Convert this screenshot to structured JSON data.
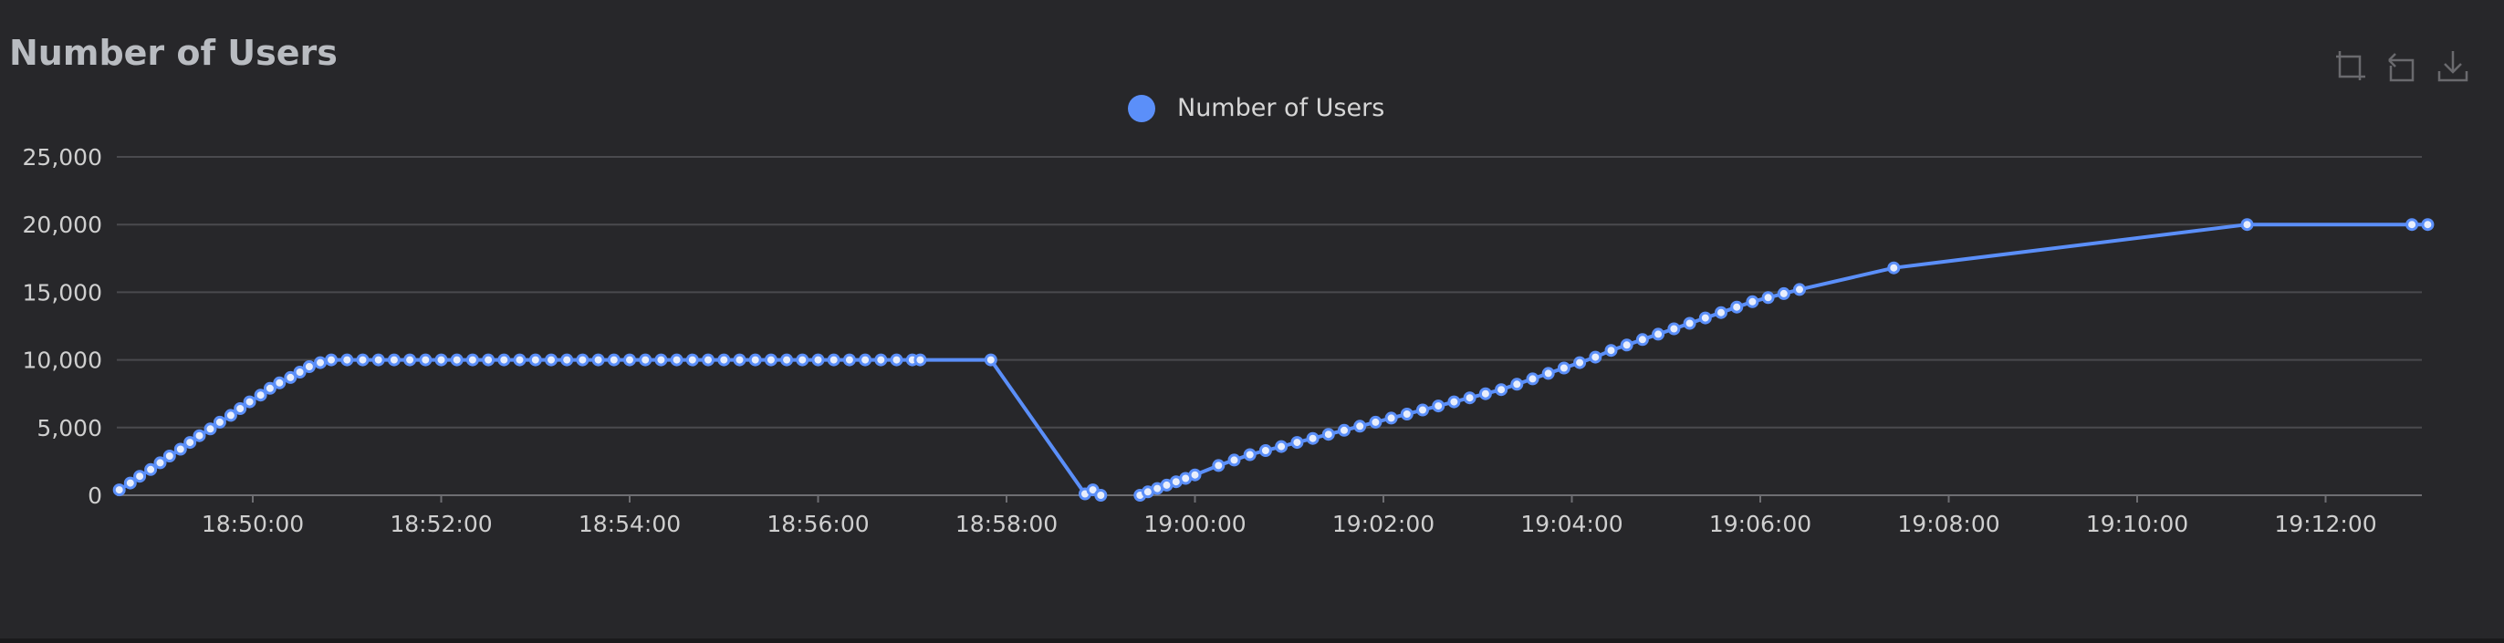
{
  "title": "Number of Users",
  "toolbox": {
    "icons": [
      "zoom-icon",
      "restore-icon",
      "download-icon"
    ]
  },
  "colors": {
    "background": "#27272a",
    "series": "#5b8ff9",
    "grid": "#4a4a4e",
    "text": "#cfcfcf"
  },
  "chart_data": {
    "type": "line",
    "title": "Number of Users",
    "xlabel": "",
    "ylabel": "",
    "legend": [
      "Number of Users"
    ],
    "legend_position": "top-center",
    "grid": true,
    "ylim": [
      0,
      25000
    ],
    "y_ticks": [
      "0",
      "5,000",
      "10,000",
      "15,000",
      "20,000",
      "25,000"
    ],
    "x_ticks": [
      "18:50:00",
      "18:52:00",
      "18:54:00",
      "18:56:00",
      "18:58:00",
      "19:00:00",
      "19:02:00",
      "19:04:00",
      "19:06:00",
      "19:08:00",
      "19:10:00",
      "19:12:00"
    ],
    "series": [
      {
        "name": "Number of Users",
        "x": [
          "18:48:35",
          "18:48:42",
          "18:48:48",
          "18:48:55",
          "18:49:01",
          "18:49:07",
          "18:49:14",
          "18:49:20",
          "18:49:26",
          "18:49:33",
          "18:49:39",
          "18:49:46",
          "18:49:52",
          "18:49:58",
          "18:50:05",
          "18:50:11",
          "18:50:17",
          "18:50:24",
          "18:50:30",
          "18:50:36",
          "18:50:43",
          "18:50:50",
          "18:51:00",
          "18:51:10",
          "18:51:20",
          "18:51:30",
          "18:51:40",
          "18:51:50",
          "18:52:00",
          "18:52:10",
          "18:52:20",
          "18:52:30",
          "18:52:40",
          "18:52:50",
          "18:53:00",
          "18:53:10",
          "18:53:20",
          "18:53:30",
          "18:53:40",
          "18:53:50",
          "18:54:00",
          "18:54:10",
          "18:54:20",
          "18:54:30",
          "18:54:40",
          "18:54:50",
          "18:55:00",
          "18:55:10",
          "18:55:20",
          "18:55:30",
          "18:55:40",
          "18:55:50",
          "18:56:00",
          "18:56:10",
          "18:56:20",
          "18:56:30",
          "18:56:40",
          "18:56:50",
          "18:57:00",
          "18:57:05",
          "18:57:50",
          "18:58:50",
          "18:58:55",
          "18:59:00",
          "18:59:25",
          "18:59:30",
          "18:59:36",
          "18:59:42",
          "18:59:48",
          "18:59:54",
          "19:00:00",
          "19:00:15",
          "19:00:25",
          "19:00:35",
          "19:00:45",
          "19:00:55",
          "19:01:05",
          "19:01:15",
          "19:01:25",
          "19:01:35",
          "19:01:45",
          "19:01:55",
          "19:02:05",
          "19:02:15",
          "19:02:25",
          "19:02:35",
          "19:02:45",
          "19:02:55",
          "19:03:05",
          "19:03:15",
          "19:03:25",
          "19:03:35",
          "19:03:45",
          "19:03:55",
          "19:04:05",
          "19:04:15",
          "19:04:25",
          "19:04:35",
          "19:04:45",
          "19:04:55",
          "19:05:05",
          "19:05:15",
          "19:05:25",
          "19:05:35",
          "19:05:45",
          "19:05:55",
          "19:06:05",
          "19:06:15",
          "19:06:25",
          "19:07:25",
          "19:11:10",
          "19:12:55",
          "19:13:05"
        ],
        "y": [
          400,
          900,
          1400,
          1900,
          2400,
          2900,
          3400,
          3900,
          4400,
          4900,
          5400,
          5900,
          6400,
          6900,
          7400,
          7900,
          8300,
          8700,
          9100,
          9500,
          9800,
          10000,
          10000,
          10000,
          10000,
          10000,
          10000,
          10000,
          10000,
          10000,
          10000,
          10000,
          10000,
          10000,
          10000,
          10000,
          10000,
          10000,
          10000,
          10000,
          10000,
          10000,
          10000,
          10000,
          10000,
          10000,
          10000,
          10000,
          10000,
          10000,
          10000,
          10000,
          10000,
          10000,
          10000,
          10000,
          10000,
          10000,
          10000,
          10000,
          10000,
          100,
          400,
          0,
          0,
          250,
          500,
          750,
          1000,
          1250,
          1500,
          2200,
          2600,
          3000,
          3300,
          3600,
          3900,
          4200,
          4500,
          4800,
          5100,
          5400,
          5700,
          6000,
          6300,
          6600,
          6900,
          7200,
          7500,
          7800,
          8200,
          8600,
          9000,
          9400,
          9800,
          10200,
          10700,
          11100,
          11500,
          11900,
          12300,
          12700,
          13100,
          13500,
          13900,
          14300,
          14600,
          14900,
          15200,
          16800,
          20000,
          20000,
          20000
        ]
      }
    ]
  }
}
